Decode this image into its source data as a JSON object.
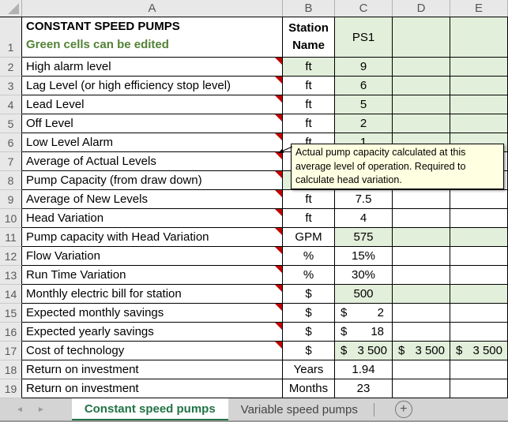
{
  "columns": [
    "A",
    "B",
    "C",
    "D",
    "E"
  ],
  "title_row": {
    "num": "1",
    "title": "CONSTANT SPEED PUMPS",
    "subtitle": "Green cells can be edited",
    "station_line1": "Station",
    "station_line2": "Name",
    "station_value": "PS1"
  },
  "rows": [
    {
      "num": "2",
      "label": "High alarm level",
      "unit": "ft",
      "c": "9",
      "d": "",
      "e": "",
      "comment": true,
      "green_b": true,
      "green_cde": true
    },
    {
      "num": "3",
      "label": "Lag Level (or high efficiency stop level)",
      "unit": "ft",
      "c": "6",
      "d": "",
      "e": "",
      "comment": true,
      "green_cde": true
    },
    {
      "num": "4",
      "label": "Lead Level",
      "unit": "ft",
      "c": "5",
      "d": "",
      "e": "",
      "comment": true,
      "green_cde": true
    },
    {
      "num": "5",
      "label": "Off Level",
      "unit": "ft",
      "c": "2",
      "d": "",
      "e": "",
      "comment": true,
      "green_cde": true
    },
    {
      "num": "6",
      "label": "Low Level Alarm",
      "unit": "ft",
      "c": "1",
      "d": "",
      "e": "",
      "comment": true,
      "green_cde": true
    },
    {
      "num": "7",
      "label": "Average of Actual Levels",
      "unit": "",
      "c": "",
      "d": "",
      "e": "",
      "comment": true
    },
    {
      "num": "8",
      "label": "Pump Capacity (from draw down)",
      "unit": "",
      "c": "",
      "d": "",
      "e": "",
      "comment": true,
      "green_b": true
    },
    {
      "num": "9",
      "label": "Average of New Levels",
      "unit": "ft",
      "c": "7.5",
      "d": "",
      "e": "",
      "comment": true
    },
    {
      "num": "10",
      "label": "Head Variation",
      "unit": "ft",
      "c": "4",
      "d": "",
      "e": "",
      "comment": true
    },
    {
      "num": "11",
      "label": "Pump capacity with Head Variation",
      "unit": "GPM",
      "c": "575",
      "d": "",
      "e": "",
      "comment": true,
      "green_cde": true
    },
    {
      "num": "12",
      "label": "Flow Variation",
      "unit": "%",
      "c": "15%",
      "d": "",
      "e": "",
      "comment": true
    },
    {
      "num": "13",
      "label": "Run Time Variation",
      "unit": "%",
      "c": "30%",
      "d": "",
      "e": "",
      "comment": true
    },
    {
      "num": "14",
      "label": "Monthly electric bill for station",
      "unit": "$",
      "c": "500",
      "d": "",
      "e": "",
      "comment": true,
      "green_cde": true
    },
    {
      "num": "15",
      "label": "Expected monthly savings",
      "unit": "$",
      "c": {
        "sym": "$",
        "val": "2"
      },
      "d": "",
      "e": "",
      "comment": true
    },
    {
      "num": "16",
      "label": "Expected yearly savings",
      "unit": "$",
      "c": {
        "sym": "$",
        "val": "18"
      },
      "d": "",
      "e": "",
      "comment": true
    },
    {
      "num": "17",
      "label": "Cost of technology",
      "unit": "$",
      "c": {
        "sym": "$",
        "val": "3 500"
      },
      "d": {
        "sym": "$",
        "val": "3 500"
      },
      "e": {
        "sym": "$",
        "val": "3 500"
      },
      "comment": true,
      "green_cde": true
    },
    {
      "num": "18",
      "label": "Return on investment",
      "unit": "Years",
      "c": "1.94",
      "d": "",
      "e": ""
    },
    {
      "num": "19",
      "label": "Return on investment",
      "unit": "Months",
      "c": "23",
      "d": "",
      "e": ""
    }
  ],
  "tooltip": {
    "text": "Actual pump capacity calculated at this average level of operation. Required to calculate head variation."
  },
  "sheet_tabs": {
    "active": "Constant speed pumps",
    "inactive": "Variable speed pumps"
  },
  "icons": {
    "nav_left": "◄",
    "nav_right": "►",
    "plus": "+"
  },
  "colors": {
    "editable_green": "#e2efda",
    "subtitle_green": "#538135",
    "tab_green": "#217346",
    "comment_red": "#c00000",
    "tooltip_bg": "#ffffe1"
  }
}
